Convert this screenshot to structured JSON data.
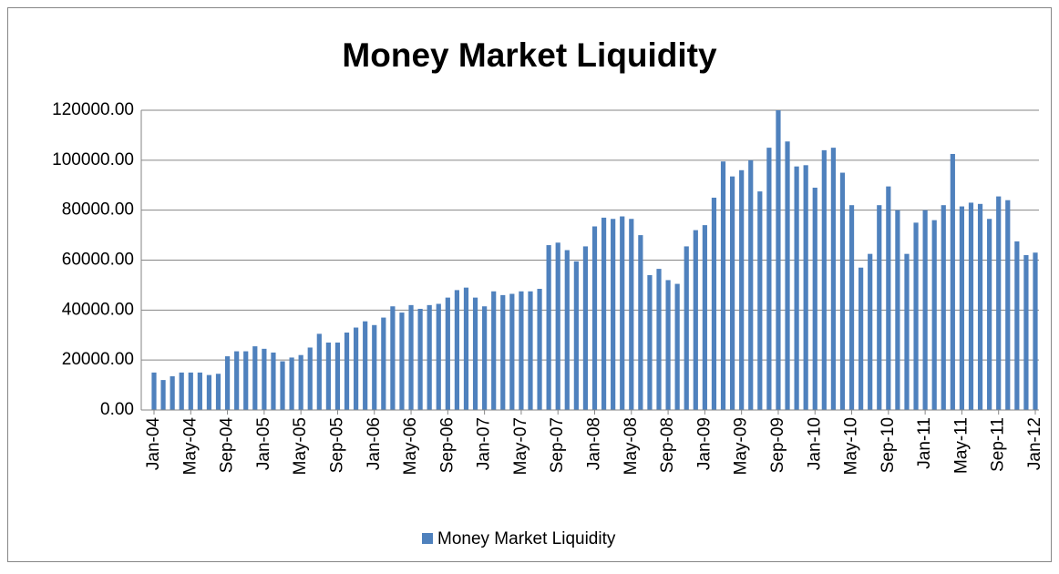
{
  "chart_data": {
    "type": "bar",
    "title": "Money Market Liquidity",
    "categories": [
      "Jan-04",
      null,
      null,
      null,
      "May-04",
      null,
      null,
      null,
      "Sep-04",
      null,
      null,
      null,
      "Jan-05",
      null,
      null,
      null,
      "May-05",
      null,
      null,
      null,
      "Sep-05",
      null,
      null,
      null,
      "Jan-06",
      null,
      null,
      null,
      "May-06",
      null,
      null,
      null,
      "Sep-06",
      null,
      null,
      null,
      "Jan-07",
      null,
      null,
      null,
      "May-07",
      null,
      null,
      null,
      "Sep-07",
      null,
      null,
      null,
      "Jan-08",
      null,
      null,
      null,
      "May-08",
      null,
      null,
      null,
      "Sep-08",
      null,
      null,
      null,
      "Jan-09",
      null,
      null,
      null,
      "May-09",
      null,
      null,
      null,
      "Sep-09",
      null,
      null,
      null,
      "Jan-10",
      null,
      null,
      null,
      "May-10",
      null,
      null,
      null,
      "Sep-10",
      null,
      null,
      null,
      "Jan-11",
      null,
      null,
      null,
      "May-11",
      null,
      null,
      null,
      "Sep-11",
      null,
      null,
      null,
      "Jan-12"
    ],
    "series": [
      {
        "name": "Money Market Liquidity",
        "color": "#4f81bd",
        "values": [
          15000,
          12000,
          13500,
          15000,
          15000,
          15000,
          14000,
          14500,
          21500,
          23500,
          23500,
          25500,
          24500,
          23000,
          19500,
          21000,
          22000,
          25000,
          30500,
          27000,
          27000,
          31000,
          33000,
          35500,
          34000,
          37000,
          41500,
          39000,
          42000,
          40500,
          42000,
          42500,
          45000,
          48000,
          49000,
          45000,
          41500,
          47500,
          46000,
          46500,
          47500,
          47500,
          48500,
          66000,
          67000,
          64000,
          59500,
          65500,
          73500,
          77000,
          76500,
          77500,
          76500,
          70000,
          54000,
          56500,
          52000,
          50500,
          65500,
          72000,
          74000,
          85000,
          99500,
          93500,
          96000,
          100000,
          87500,
          105000,
          120000,
          107500,
          97500,
          98000,
          89000,
          104000,
          105000,
          95000,
          82000,
          57000,
          62500,
          82000,
          89500,
          80000,
          62500,
          75000,
          80000,
          76000,
          82000,
          102500,
          81500,
          83000,
          82500,
          76500,
          85500,
          84000,
          67500,
          62000,
          63000
        ]
      }
    ],
    "ylim": [
      0,
      120000
    ],
    "yticks": [
      {
        "value": 0,
        "label": "0.00"
      },
      {
        "value": 20000,
        "label": "20000.00"
      },
      {
        "value": 40000,
        "label": "40000.00"
      },
      {
        "value": 60000,
        "label": "60000.00"
      },
      {
        "value": 80000,
        "label": "80000.00"
      },
      {
        "value": 100000,
        "label": "100000.00"
      },
      {
        "value": 120000,
        "label": "120000.00"
      }
    ],
    "grid": true,
    "legend": "bottom"
  }
}
